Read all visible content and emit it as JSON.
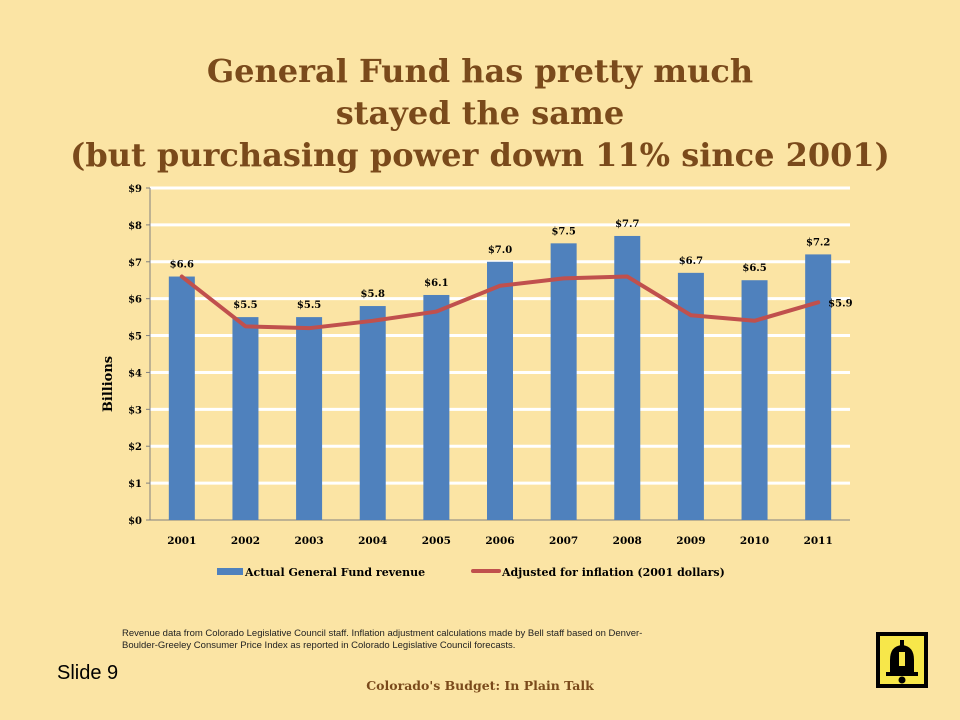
{
  "slide": {
    "title_lines": [
      "General Fund has pretty much",
      "stayed the same",
      "(but purchasing power down 11% since 2001)"
    ],
    "source_note_lines": [
      "Revenue data from Colorado Legislative Council staff. Inflation adjustment calculations made by Bell staff based on Denver-",
      "Boulder-Greeley Consumer Price Index as reported in Colorado Legislative Council forecasts."
    ],
    "slide_number": "Slide 9",
    "footer": "Colorado's Budget: In Plain Talk",
    "logo_icon": "bell-logo-icon"
  },
  "chart_data": {
    "type": "bar",
    "title": "",
    "xlabel": "",
    "ylabel": "Billions",
    "ylim": [
      0,
      9
    ],
    "yticks": [
      "$0",
      "$1",
      "$2",
      "$3",
      "$4",
      "$5",
      "$6",
      "$7",
      "$8",
      "$9"
    ],
    "categories": [
      "2001",
      "2002",
      "2003",
      "2004",
      "2005",
      "2006",
      "2007",
      "2008",
      "2009",
      "2010",
      "2011"
    ],
    "grid": true,
    "legend_position": "bottom",
    "series": [
      {
        "name": "Actual General Fund revenue",
        "kind": "bar",
        "color": "#4f81bd",
        "values": [
          6.6,
          5.5,
          5.5,
          5.8,
          6.1,
          7.0,
          7.5,
          7.7,
          6.7,
          6.5,
          7.2
        ],
        "labels": [
          "$6.6",
          "$5.5",
          "$5.5",
          "$5.8",
          "$6.1",
          "$7.0",
          "$7.5",
          "$7.7",
          "$6.7",
          "$6.5",
          "$7.2"
        ]
      },
      {
        "name": "Adjusted for inflation (2001 dollars)",
        "kind": "line",
        "color": "#c0504d",
        "values": [
          6.6,
          5.25,
          5.2,
          5.4,
          5.65,
          6.35,
          6.55,
          6.6,
          5.55,
          5.4,
          5.9
        ],
        "end_label": "$5.9"
      }
    ]
  }
}
